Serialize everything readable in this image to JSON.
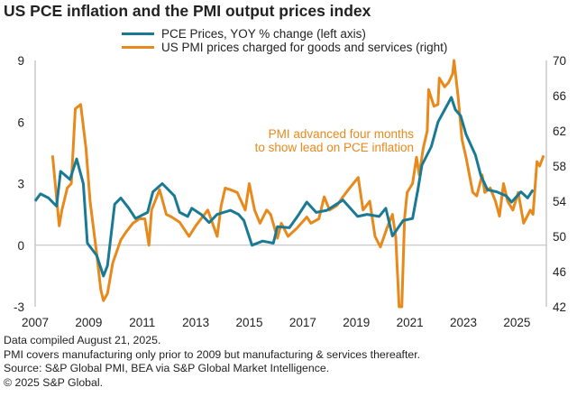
{
  "chart_data": {
    "type": "line",
    "title": "US PCE inflation and the PMI output prices index",
    "x_ticks": [
      "2007",
      "2009",
      "2011",
      "2013",
      "2015",
      "2017",
      "2019",
      "2021",
      "2023",
      "2025"
    ],
    "xlim": [
      2007,
      2026.1
    ],
    "left_axis": {
      "ylim": [
        -3,
        9
      ],
      "ticks": [
        "9",
        "6",
        "3",
        "0",
        "-3"
      ]
    },
    "right_axis": {
      "ylim": [
        42,
        70
      ],
      "ticks": [
        "70",
        "66",
        "62",
        "58",
        "54",
        "50",
        "46",
        "42"
      ]
    },
    "grid": false,
    "legend_position": "top",
    "annotation": [
      "PMI advanced four months",
      "to show lead on PCE inflation"
    ],
    "series": [
      {
        "name": "PCE Prices, YOY % change (left axis)",
        "axis": "left",
        "color": "#1a7a94",
        "x": [
          2007.0,
          2007.2,
          2007.5,
          2007.8,
          2007.95,
          2008.3,
          2008.55,
          2008.8,
          2008.95,
          2009.3,
          2009.55,
          2009.7,
          2009.97,
          2010.2,
          2010.5,
          2010.75,
          2011.2,
          2011.4,
          2011.75,
          2012.2,
          2012.4,
          2012.7,
          2012.85,
          2013.2,
          2013.5,
          2013.8,
          2014.3,
          2014.6,
          2014.8,
          2015.1,
          2015.5,
          2015.9,
          2016.05,
          2016.5,
          2016.8,
          2017.15,
          2017.5,
          2017.9,
          2018.5,
          2019.05,
          2019.4,
          2019.85,
          2020.1,
          2020.35,
          2020.75,
          2021.1,
          2021.3,
          2021.45,
          2021.8,
          2022.05,
          2022.3,
          2022.55,
          2022.7,
          2022.9,
          2023.1,
          2023.45,
          2023.65,
          2023.9,
          2024.25,
          2024.6,
          2024.8,
          2025.15,
          2025.4,
          2025.6
        ],
        "values": [
          2.15,
          2.5,
          2.3,
          1.9,
          3.6,
          3.2,
          4.2,
          3.0,
          0.1,
          -0.5,
          -1.5,
          -1.0,
          2.0,
          2.3,
          1.8,
          1.3,
          1.6,
          2.6,
          3.0,
          2.4,
          1.6,
          1.4,
          1.8,
          1.5,
          1.1,
          1.5,
          1.7,
          1.5,
          1.2,
          0.0,
          0.2,
          0.1,
          0.9,
          0.85,
          1.4,
          2.1,
          1.6,
          1.7,
          2.2,
          1.4,
          1.5,
          1.4,
          1.8,
          0.45,
          1.2,
          1.3,
          2.7,
          3.9,
          4.8,
          6.0,
          6.6,
          7.2,
          6.6,
          6.3,
          5.4,
          4.4,
          3.4,
          2.7,
          2.6,
          2.4,
          2.1,
          2.6,
          2.3,
          2.7
        ]
      },
      {
        "name": "US PMI prices charged for goods and services (right)",
        "axis": "right",
        "color": "#e8891c",
        "x": [
          2007.65,
          2007.9,
          2008.0,
          2008.2,
          2008.35,
          2008.5,
          2008.7,
          2008.9,
          2009.05,
          2009.3,
          2009.45,
          2009.55,
          2009.7,
          2009.9,
          2010.2,
          2010.4,
          2010.65,
          2010.9,
          2011.1,
          2011.25,
          2011.35,
          2011.65,
          2011.9,
          2012.1,
          2012.4,
          2012.75,
          2013.0,
          2013.45,
          2013.8,
          2013.95,
          2014.1,
          2014.3,
          2014.55,
          2014.85,
          2015.0,
          2015.2,
          2015.4,
          2015.65,
          2015.8,
          2016.05,
          2016.2,
          2016.45,
          2016.8,
          2017.15,
          2017.3,
          2017.6,
          2017.8,
          2018.0,
          2018.27,
          2018.5,
          2018.7,
          2019.07,
          2019.25,
          2019.5,
          2019.7,
          2019.9,
          2020.15,
          2020.35,
          2020.47,
          2020.6,
          2020.7,
          2020.8,
          2020.9,
          2021.1,
          2021.25,
          2021.35,
          2021.5,
          2021.65,
          2021.7,
          2021.9,
          2022.05,
          2022.1,
          2022.3,
          2022.45,
          2022.6,
          2022.65,
          2022.8,
          2022.95,
          2023.1,
          2023.35,
          2023.5,
          2023.7,
          2023.8,
          2024.0,
          2024.2,
          2024.35,
          2024.5,
          2024.65,
          2024.85,
          2025.05,
          2025.25,
          2025.5,
          2025.6,
          2025.75,
          2025.85,
          2026.0
        ],
        "values": [
          59.2,
          51.2,
          53.0,
          55.5,
          56.0,
          64.5,
          65.0,
          60.0,
          54.0,
          48.0,
          44.0,
          42.7,
          43.5,
          47.0,
          49.6,
          50.5,
          51.5,
          52.0,
          52.0,
          49.0,
          53.0,
          55.3,
          52.5,
          52.2,
          51.6,
          50.0,
          51.2,
          53.0,
          50.0,
          53.5,
          55.5,
          55.3,
          55.0,
          53.0,
          56.0,
          53.0,
          51.5,
          53.0,
          52.5,
          49.8,
          51.5,
          50.0,
          51.0,
          52.2,
          51.5,
          52.0,
          54.5,
          53.0,
          53.5,
          54.5,
          55.3,
          56.7,
          53.0,
          54.0,
          50.0,
          48.8,
          51.0,
          52.5,
          50.0,
          42.0,
          42.0,
          52.0,
          55.0,
          56.0,
          59.0,
          57.0,
          60.0,
          62.0,
          66.7,
          64.8,
          65.0,
          68.0,
          67.0,
          67.5,
          68.5,
          70.0,
          66.0,
          61.0,
          59.0,
          55.0,
          54.6,
          57.0,
          55.0,
          55.5,
          54.0,
          52.3,
          56.0,
          54.0,
          53.0,
          55.0,
          51.5,
          53.0,
          52.5,
          58.5,
          58.0,
          59.2
        ]
      }
    ]
  },
  "footnotes": [
    "Data compiled August 21, 2025.",
    "PMI covers manufacturing only prior to 2009 but manufacturing & services thereafter.",
    "Source: S&P Global PMI, BEA via S&P Global Market Intelligence.",
    "© 2025 S&P Global."
  ]
}
